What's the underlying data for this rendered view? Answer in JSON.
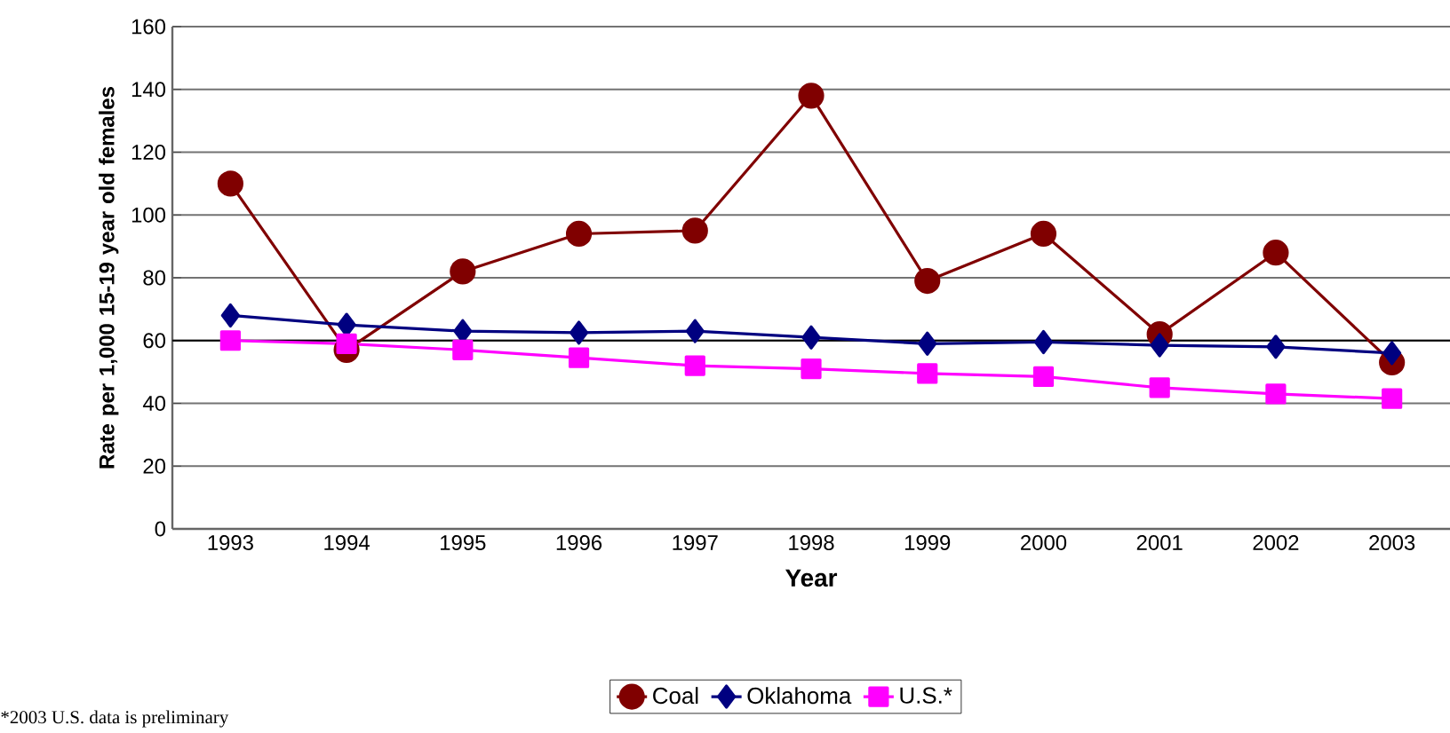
{
  "chart_data": {
    "type": "line",
    "xlabel": "Year",
    "ylabel": "Rate per 1,000 15-19 year old females",
    "categories": [
      "1993",
      "1994",
      "1995",
      "1996",
      "1997",
      "1998",
      "1999",
      "2000",
      "2001",
      "2002",
      "2003"
    ],
    "series": [
      {
        "name": "Coal",
        "color": "#800000",
        "marker": "circle",
        "values": [
          110,
          57,
          82,
          94,
          95,
          138,
          79,
          94,
          62,
          88,
          53
        ]
      },
      {
        "name": "Oklahoma",
        "color": "#000080",
        "marker": "diamond",
        "values": [
          68,
          65,
          63,
          62.5,
          63,
          61,
          59,
          59.5,
          58.5,
          58,
          56
        ]
      },
      {
        "name": "U.S.*",
        "color": "#ff00ff",
        "marker": "square",
        "values": [
          60,
          59,
          57,
          54.5,
          52,
          51,
          49.5,
          48.5,
          45,
          43,
          41.5
        ]
      }
    ],
    "ylim": [
      0,
      160
    ],
    "yticks": [
      0,
      20,
      40,
      60,
      80,
      100,
      120,
      140,
      160
    ],
    "grid": "y",
    "ref_lines": [
      {
        "axis": "y",
        "value": 60,
        "color": "#000000"
      }
    ],
    "legend": "bottom",
    "annotations": [
      "*2003 U.S. data is preliminary"
    ]
  }
}
